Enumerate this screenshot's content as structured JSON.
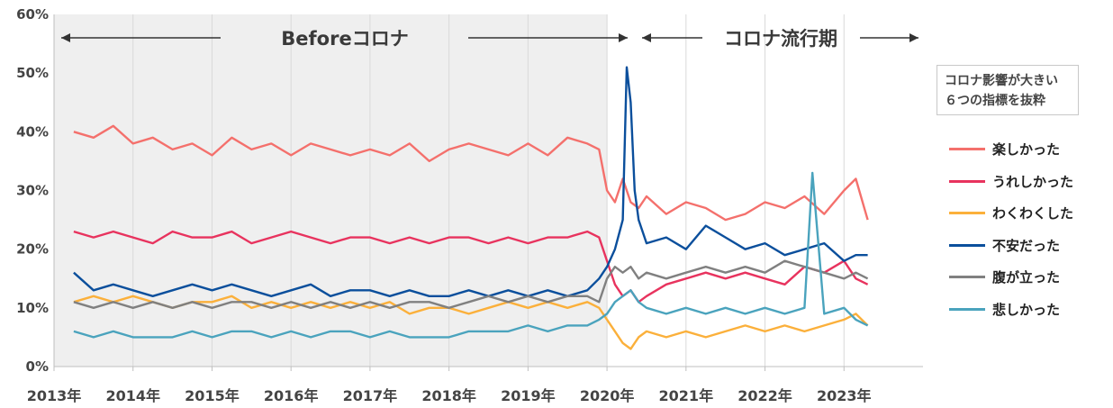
{
  "chart_data": {
    "type": "line",
    "title": "",
    "xlabel": "",
    "ylabel": "",
    "x_ticks": [
      "2013年",
      "2014年",
      "2015年",
      "2016年",
      "2017年",
      "2018年",
      "2019年",
      "2020年",
      "2021年",
      "2022年",
      "2023年"
    ],
    "y_ticks": [
      "0%",
      "10%",
      "20%",
      "30%",
      "40%",
      "50%",
      "60%"
    ],
    "ylim": [
      0,
      60
    ],
    "xlim": [
      2013.0,
      2024.0
    ],
    "grid": "vertical",
    "regions": [
      {
        "label": "Beforeコロナ",
        "from": 2013.0,
        "to": 2020.0,
        "shaded": true
      },
      {
        "label": "コロナ流行期",
        "from": 2020.0,
        "to": 2024.0,
        "shaded": false
      }
    ],
    "legend_title": [
      "コロナ影響が大きい",
      "６つの指標を抜粋"
    ],
    "legend_position": "right",
    "series": [
      {
        "name": "楽しかった",
        "color": "#f4706c",
        "x": [
          2013.25,
          2013.5,
          2013.75,
          2014.0,
          2014.25,
          2014.5,
          2014.75,
          2015.0,
          2015.25,
          2015.5,
          2015.75,
          2016.0,
          2016.25,
          2016.5,
          2016.75,
          2017.0,
          2017.25,
          2017.5,
          2017.75,
          2018.0,
          2018.25,
          2018.5,
          2018.75,
          2019.0,
          2019.25,
          2019.5,
          2019.75,
          2019.9,
          2020.0,
          2020.1,
          2020.2,
          2020.3,
          2020.4,
          2020.5,
          2020.75,
          2021.0,
          2021.25,
          2021.5,
          2021.75,
          2022.0,
          2022.25,
          2022.5,
          2022.75,
          2023.0,
          2023.15,
          2023.3
        ],
        "values": [
          40,
          39,
          41,
          38,
          39,
          37,
          38,
          36,
          39,
          37,
          38,
          36,
          38,
          37,
          36,
          37,
          36,
          38,
          35,
          37,
          38,
          37,
          36,
          38,
          36,
          39,
          38,
          37,
          30,
          28,
          32,
          28,
          27,
          29,
          26,
          28,
          27,
          25,
          26,
          28,
          27,
          29,
          26,
          30,
          32,
          25
        ]
      },
      {
        "name": "うれしかった",
        "color": "#e8335e",
        "x": [
          2013.25,
          2013.5,
          2013.75,
          2014.0,
          2014.25,
          2014.5,
          2014.75,
          2015.0,
          2015.25,
          2015.5,
          2015.75,
          2016.0,
          2016.25,
          2016.5,
          2016.75,
          2017.0,
          2017.25,
          2017.5,
          2017.75,
          2018.0,
          2018.25,
          2018.5,
          2018.75,
          2019.0,
          2019.25,
          2019.5,
          2019.75,
          2019.9,
          2020.0,
          2020.1,
          2020.2,
          2020.3,
          2020.4,
          2020.5,
          2020.75,
          2021.0,
          2021.25,
          2021.5,
          2021.75,
          2022.0,
          2022.25,
          2022.5,
          2022.75,
          2023.0,
          2023.15,
          2023.3
        ],
        "values": [
          23,
          22,
          23,
          22,
          21,
          23,
          22,
          22,
          23,
          21,
          22,
          23,
          22,
          21,
          22,
          22,
          21,
          22,
          21,
          22,
          22,
          21,
          22,
          21,
          22,
          22,
          23,
          22,
          18,
          14,
          12,
          13,
          11,
          12,
          14,
          15,
          16,
          15,
          16,
          15,
          14,
          17,
          16,
          18,
          15,
          14
        ]
      },
      {
        "name": "わくわくした",
        "color": "#fbb03b",
        "x": [
          2013.25,
          2013.5,
          2013.75,
          2014.0,
          2014.25,
          2014.5,
          2014.75,
          2015.0,
          2015.25,
          2015.5,
          2015.75,
          2016.0,
          2016.25,
          2016.5,
          2016.75,
          2017.0,
          2017.25,
          2017.5,
          2017.75,
          2018.0,
          2018.25,
          2018.5,
          2018.75,
          2019.0,
          2019.25,
          2019.5,
          2019.75,
          2019.9,
          2020.0,
          2020.1,
          2020.2,
          2020.3,
          2020.4,
          2020.5,
          2020.75,
          2021.0,
          2021.25,
          2021.5,
          2021.75,
          2022.0,
          2022.25,
          2022.5,
          2022.75,
          2023.0,
          2023.15,
          2023.3
        ],
        "values": [
          11,
          12,
          11,
          12,
          11,
          10,
          11,
          11,
          12,
          10,
          11,
          10,
          11,
          10,
          11,
          10,
          11,
          9,
          10,
          10,
          9,
          10,
          11,
          10,
          11,
          10,
          11,
          10,
          8,
          6,
          4,
          3,
          5,
          6,
          5,
          6,
          5,
          6,
          7,
          6,
          7,
          6,
          7,
          8,
          9,
          7
        ]
      },
      {
        "name": "不安だった",
        "color": "#0b4f9c",
        "x": [
          2013.25,
          2013.5,
          2013.75,
          2014.0,
          2014.25,
          2014.5,
          2014.75,
          2015.0,
          2015.25,
          2015.5,
          2015.75,
          2016.0,
          2016.25,
          2016.5,
          2016.75,
          2017.0,
          2017.25,
          2017.5,
          2017.75,
          2018.0,
          2018.25,
          2018.5,
          2018.75,
          2019.0,
          2019.25,
          2019.5,
          2019.75,
          2019.9,
          2020.0,
          2020.1,
          2020.2,
          2020.25,
          2020.3,
          2020.35,
          2020.4,
          2020.5,
          2020.75,
          2021.0,
          2021.25,
          2021.5,
          2021.75,
          2022.0,
          2022.25,
          2022.5,
          2022.75,
          2023.0,
          2023.15,
          2023.3
        ],
        "values": [
          16,
          13,
          14,
          13,
          12,
          13,
          14,
          13,
          14,
          13,
          12,
          13,
          14,
          12,
          13,
          13,
          12,
          13,
          12,
          12,
          13,
          12,
          13,
          12,
          13,
          12,
          13,
          15,
          17,
          20,
          25,
          51,
          45,
          30,
          25,
          21,
          22,
          20,
          24,
          22,
          20,
          21,
          19,
          20,
          21,
          18,
          19,
          19
        ]
      },
      {
        "name": "腹が立った",
        "color": "#808080",
        "x": [
          2013.25,
          2013.5,
          2013.75,
          2014.0,
          2014.25,
          2014.5,
          2014.75,
          2015.0,
          2015.25,
          2015.5,
          2015.75,
          2016.0,
          2016.25,
          2016.5,
          2016.75,
          2017.0,
          2017.25,
          2017.5,
          2017.75,
          2018.0,
          2018.25,
          2018.5,
          2018.75,
          2019.0,
          2019.25,
          2019.5,
          2019.75,
          2019.9,
          2020.0,
          2020.1,
          2020.2,
          2020.3,
          2020.4,
          2020.5,
          2020.75,
          2021.0,
          2021.25,
          2021.5,
          2021.75,
          2022.0,
          2022.25,
          2022.5,
          2022.75,
          2023.0,
          2023.15,
          2023.3
        ],
        "values": [
          11,
          10,
          11,
          10,
          11,
          10,
          11,
          10,
          11,
          11,
          10,
          11,
          10,
          11,
          10,
          11,
          10,
          11,
          11,
          10,
          11,
          12,
          11,
          12,
          11,
          12,
          12,
          11,
          15,
          17,
          16,
          17,
          15,
          16,
          15,
          16,
          17,
          16,
          17,
          16,
          18,
          17,
          16,
          15,
          16,
          15
        ]
      },
      {
        "name": "悲しかった",
        "color": "#4aa3bd",
        "x": [
          2013.25,
          2013.5,
          2013.75,
          2014.0,
          2014.25,
          2014.5,
          2014.75,
          2015.0,
          2015.25,
          2015.5,
          2015.75,
          2016.0,
          2016.25,
          2016.5,
          2016.75,
          2017.0,
          2017.25,
          2017.5,
          2017.75,
          2018.0,
          2018.25,
          2018.5,
          2018.75,
          2019.0,
          2019.25,
          2019.5,
          2019.75,
          2019.9,
          2020.0,
          2020.1,
          2020.2,
          2020.3,
          2020.4,
          2020.5,
          2020.75,
          2021.0,
          2021.25,
          2021.5,
          2021.75,
          2022.0,
          2022.25,
          2022.5,
          2022.6,
          2022.75,
          2023.0,
          2023.15,
          2023.3
        ],
        "values": [
          6,
          5,
          6,
          5,
          5,
          5,
          6,
          5,
          6,
          6,
          5,
          6,
          5,
          6,
          6,
          5,
          6,
          5,
          5,
          5,
          6,
          6,
          6,
          7,
          6,
          7,
          7,
          8,
          9,
          11,
          12,
          13,
          11,
          10,
          9,
          10,
          9,
          10,
          9,
          10,
          9,
          10,
          33,
          9,
          10,
          8,
          7
        ]
      }
    ]
  }
}
